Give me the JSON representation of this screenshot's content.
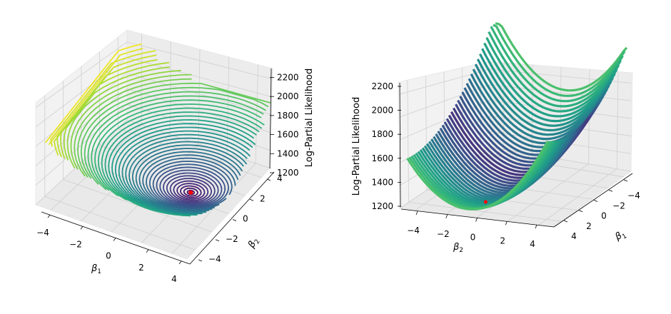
{
  "chart_data": [
    {
      "type": "contour3d",
      "view": "perspective from the front-left, surface drawn as stacked contour lines",
      "xlabel": "β1",
      "ylabel": "β2",
      "zlabel": "Log-Partial Likelihood",
      "xticks": [
        "−4",
        "−2",
        "0",
        "2",
        "4"
      ],
      "yticks": [
        "−4",
        "−2",
        "0",
        "2",
        "4"
      ],
      "zticks": [
        "1200",
        "1400",
        "1600",
        "1800",
        "2000",
        "2200"
      ],
      "xlim": [
        -5,
        5
      ],
      "ylim": [
        -5,
        5
      ],
      "zlim": [
        1200,
        2300
      ],
      "colormap": "viridis",
      "minimum": {
        "beta1": 2.5,
        "beta2": -0.5,
        "value": 1260
      },
      "marker_color": "#ff0000",
      "grid": true
    },
    {
      "type": "surface3d",
      "view": "rotated view from the β2 side, filled surface",
      "xlabel": "β2",
      "ylabel": "β1",
      "zlabel": "Log-Partial Likelihood",
      "xticks": [
        "−4",
        "−2",
        "0",
        "2",
        "4"
      ],
      "yticks": [
        "−4",
        "−2",
        "0",
        "2",
        "4"
      ],
      "zticks": [
        "1200",
        "1400",
        "1600",
        "1800",
        "2000",
        "2200"
      ],
      "xlim": [
        -5,
        5
      ],
      "ylim": [
        -5,
        5
      ],
      "zlim": [
        1200,
        2300
      ],
      "colormap": "viridis",
      "minimum": {
        "beta1": 2.5,
        "beta2": -0.5,
        "value": 1260
      },
      "marker_color": "#ff0000",
      "grid": true
    }
  ]
}
